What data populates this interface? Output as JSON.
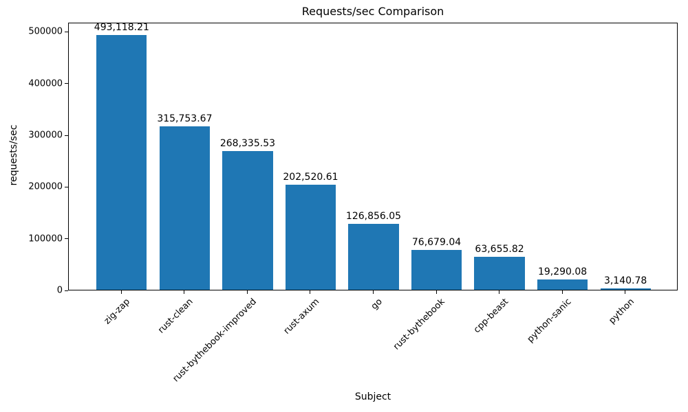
{
  "chart_data": {
    "type": "bar",
    "title": "Requests/sec Comparison",
    "xlabel": "Subject",
    "ylabel": "requests/sec",
    "categories": [
      "zig-zap",
      "rust-clean",
      "rust-bythebook-improved",
      "rust-axum",
      "go",
      "rust-bythebook",
      "cpp-beast",
      "python-sanic",
      "python"
    ],
    "values": [
      493118.21,
      315753.67,
      268335.53,
      202520.61,
      126856.05,
      76679.04,
      63655.82,
      19290.08,
      3140.78
    ],
    "value_labels": [
      "493,118.21",
      "315,753.67",
      "268,335.53",
      "202,520.61",
      "126,856.05",
      "76,679.04",
      "63,655.82",
      "19,290.08",
      "3,140.78"
    ],
    "yticks": [
      0,
      100000,
      200000,
      300000,
      400000,
      500000
    ],
    "ytick_labels": [
      "0",
      "100000",
      "200000",
      "300000",
      "400000",
      "500000"
    ],
    "ylim": [
      0,
      517774
    ],
    "xlim": [
      -0.84,
      8.84
    ],
    "bar_width_units": 0.8,
    "bar_color": "#1f77b4",
    "grid": false,
    "x_tick_rotation_deg": 45
  }
}
